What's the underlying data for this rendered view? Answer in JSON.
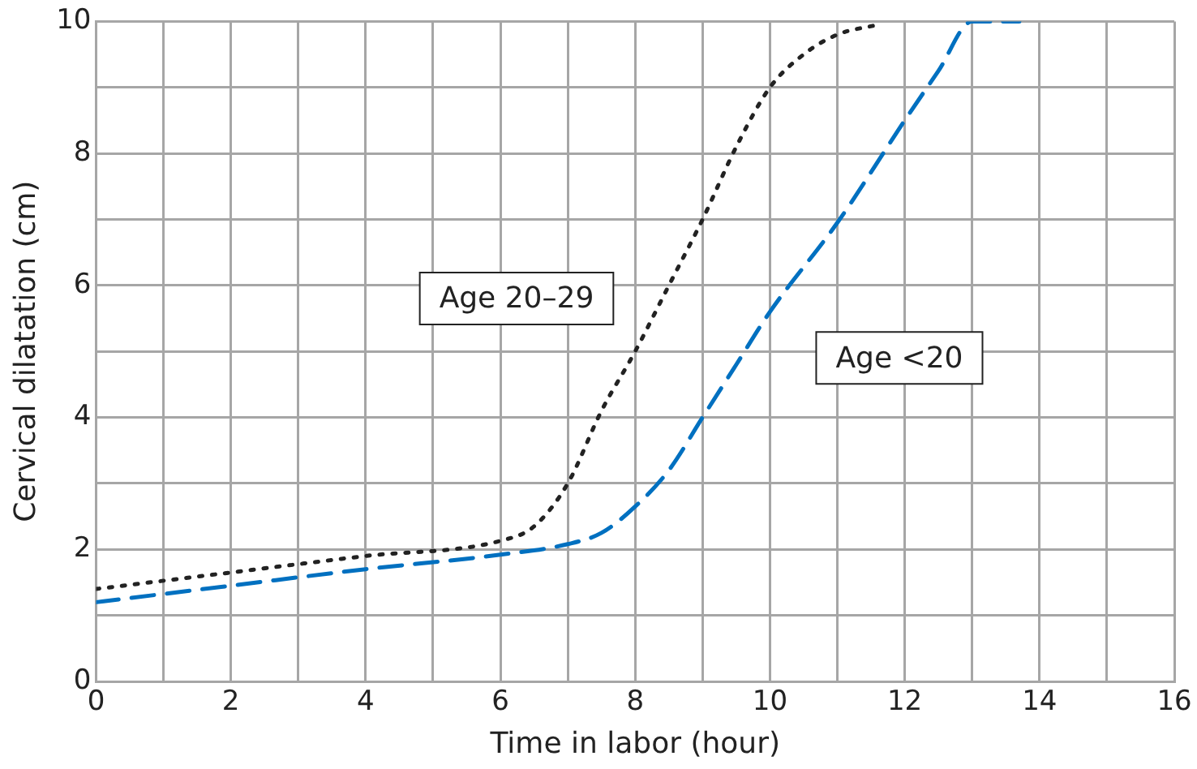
{
  "chart_data": {
    "type": "line",
    "xlabel": "Time in labor (hour)",
    "ylabel": "Cervical dilatation (cm)",
    "xlim": [
      0,
      16
    ],
    "xticks": [
      0,
      {
        "value": 1,
        "label": null
      },
      2,
      {
        "value": 3,
        "label": null
      },
      4,
      {
        "value": 5,
        "label": null
      },
      6,
      {
        "value": 7,
        "label": null
      },
      8,
      {
        "value": 9,
        "label": null
      },
      10,
      {
        "value": 11,
        "label": null
      },
      12,
      {
        "value": 13,
        "label": null
      },
      14,
      {
        "value": 15,
        "label": null
      },
      16
    ],
    "ylim": [
      0,
      10
    ],
    "yticks": [
      0,
      {
        "value": 1,
        "label": null
      },
      2,
      {
        "value": 3,
        "label": null
      },
      4,
      {
        "value": 5,
        "label": null
      },
      6,
      {
        "value": 7,
        "label": null
      },
      8,
      {
        "value": 9,
        "label": null
      },
      10
    ],
    "grid": true,
    "legend": false,
    "marker": "none",
    "series": [
      {
        "name": "Age 20–29",
        "color": "#222222",
        "line_style": "dotted",
        "x": [
          0,
          2,
          4,
          6,
          6.5,
          7,
          7.5,
          8,
          8.5,
          9,
          9.5,
          10,
          10.5,
          11,
          11.6
        ],
        "values": [
          1.4,
          1.65,
          1.9,
          2.13,
          2.35,
          3.0,
          4.1,
          5.0,
          6.0,
          7.0,
          8.1,
          9.0,
          9.5,
          9.8,
          9.95
        ]
      },
      {
        "name": "Age <20",
        "color": "#0070c0",
        "line_style": "dashed",
        "x": [
          0,
          2,
          4,
          6,
          7,
          7.5,
          8,
          8.5,
          9,
          9.5,
          10,
          11,
          12,
          12.5,
          13,
          13.7
        ],
        "values": [
          1.2,
          1.45,
          1.7,
          1.92,
          2.08,
          2.25,
          2.65,
          3.2,
          4.0,
          4.8,
          5.6,
          6.95,
          8.5,
          9.25,
          10,
          10
        ]
      }
    ]
  }
}
